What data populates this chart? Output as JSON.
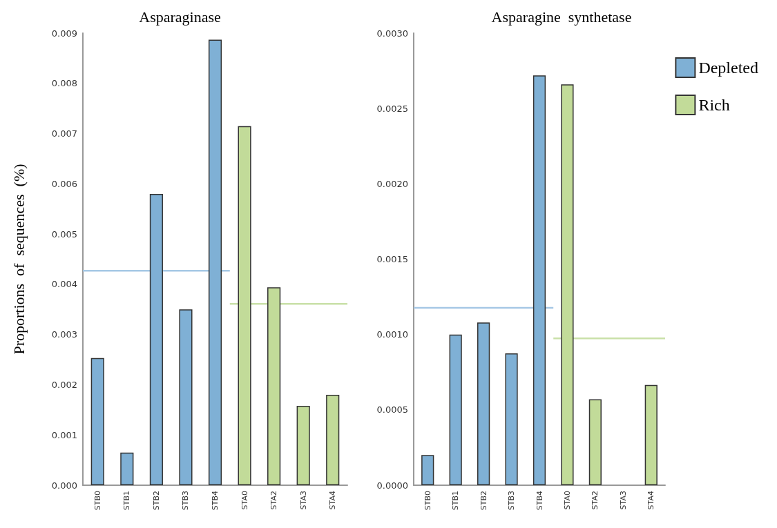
{
  "chart_data": [
    {
      "type": "bar",
      "title": "Asparaginase",
      "ylabel": "Proportions  of  sequences  (%)",
      "categories": [
        "STB0",
        "STB1",
        "STB2",
        "STB3",
        "STB4",
        "STA0",
        "STA2",
        "STA3",
        "STA4"
      ],
      "series": [
        {
          "color": "#7fb0d5",
          "values": [
            0.00253,
            0.00065,
            0.0058,
            0.0035,
            0.00887,
            null,
            null,
            null,
            null
          ]
        },
        {
          "color": "#c2db99",
          "values": [
            null,
            null,
            null,
            null,
            null,
            0.00715,
            0.00394,
            0.00158,
            0.0018
          ]
        }
      ],
      "ylim": [
        0,
        0.009
      ],
      "yticks": [
        {
          "value": 0,
          "label": "0.000"
        },
        0.001,
        0.002,
        0.003,
        0.004,
        0.005,
        0.006,
        0.007,
        0.008,
        0.009
      ],
      "ref_lines": [
        {
          "axis": "y",
          "value": 0.00427,
          "color": "#a6c8e5"
        },
        {
          "axis": "y",
          "value": 0.00361,
          "color": "#c9e0a8"
        }
      ],
      "grid": false,
      "legend": false
    },
    {
      "type": "bar",
      "title": "Asparagine  synthetase",
      "categories": [
        "STB0",
        "STB1",
        "STB2",
        "STB3",
        "STB4",
        "STA0",
        "STA2",
        "STA3",
        "STA4"
      ],
      "series": [
        {
          "name": "Depleted",
          "color": "#7fb0d5",
          "values": [
            0.0002,
            0.001,
            0.00108,
            0.000875,
            0.00272,
            null,
            null,
            null,
            null
          ]
        },
        {
          "name": "Rich",
          "color": "#c2db99",
          "values": [
            null,
            null,
            null,
            null,
            null,
            0.00266,
            0.00057,
            0,
            0.000665
          ]
        }
      ],
      "ylim": [
        0,
        0.003
      ],
      "yticks": [
        {
          "value": 0,
          "label": "0.0000"
        },
        0.0005,
        {
          "value": 0.001,
          "label": "0.0010"
        },
        0.0015,
        {
          "value": 0.002,
          "label": "0.0020"
        },
        0.0025,
        {
          "value": 0.003,
          "label": "0.0030"
        }
      ],
      "ref_lines": [
        {
          "axis": "y",
          "value": 0.001177,
          "color": "#a6c8e5"
        },
        {
          "axis": "y",
          "value": 0.000974,
          "color": "#c9e0a8"
        }
      ],
      "grid": false,
      "legend": "right"
    }
  ]
}
